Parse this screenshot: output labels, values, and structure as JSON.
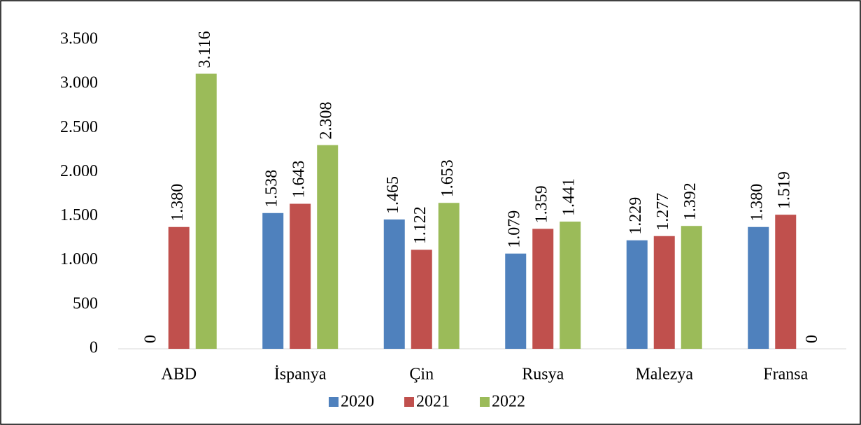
{
  "chart_data": {
    "type": "bar",
    "categories": [
      "ABD",
      "İspanya",
      "Çin",
      "Rusya",
      "Malezya",
      "Fransa"
    ],
    "series": [
      {
        "name": "2020",
        "color": "#4f81bd",
        "values": [
          0,
          1538,
          1465,
          1079,
          1229,
          1380
        ],
        "value_labels": [
          "0",
          "1.538",
          "1.465",
          "1.079",
          "1.229",
          "1.380"
        ]
      },
      {
        "name": "2021",
        "color": "#c0504d",
        "values": [
          1380,
          1643,
          1122,
          1359,
          1277,
          1519
        ],
        "value_labels": [
          "1.380",
          "1.643",
          "1.122",
          "1.359",
          "1.277",
          "1.519"
        ]
      },
      {
        "name": "2022",
        "color": "#9bbb59",
        "values": [
          3116,
          2308,
          1653,
          1441,
          1392,
          0
        ],
        "value_labels": [
          "3.116",
          "2.308",
          "1.653",
          "1.441",
          "1.392",
          "0"
        ]
      }
    ],
    "ylim": [
      0,
      3500
    ],
    "yticks": [
      0,
      500,
      {
        "value": 1000,
        "label": "1.000"
      },
      {
        "value": 1500,
        "label": "1.500"
      },
      {
        "value": 2000,
        "label": "2.000"
      },
      {
        "value": 2500,
        "label": "2.500"
      },
      {
        "value": 3000,
        "label": "3.000"
      },
      {
        "value": 3500,
        "label": "3.500"
      }
    ],
    "grid": false,
    "legend": "bottom"
  }
}
